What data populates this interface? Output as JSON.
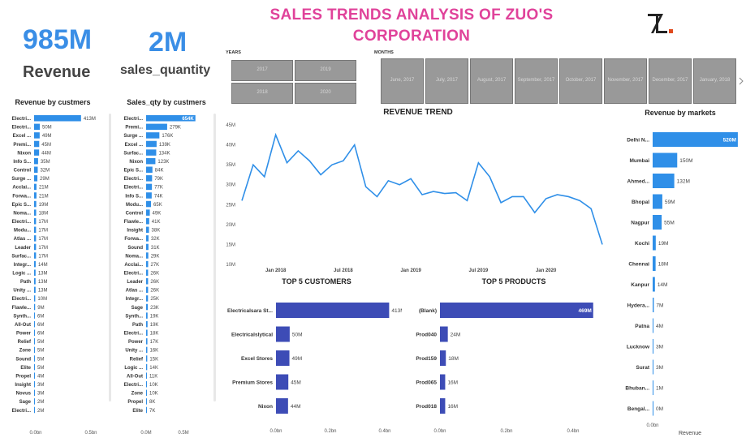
{
  "header": {
    "title_line1": "SALES TRENDS ANALYSIS OF ZUO'S",
    "title_line2": "CORPORATION"
  },
  "kpis": {
    "revenue_value": "985M",
    "revenue_label": "Revenue",
    "qty_value": "2M",
    "qty_label": "sales_quantity"
  },
  "slicers": {
    "years_label": "YEARS",
    "years": [
      "2017",
      "2019",
      "2018",
      "2020"
    ],
    "months_label": "MONTHS",
    "months": [
      "June, 2017",
      "July, 2017",
      "August, 2017",
      "September, 2017",
      "October, 2017",
      "November, 2017",
      "December, 2017",
      "January, 2018"
    ]
  },
  "colors": {
    "title": "#e0429a",
    "kpi": "#3a8ee6",
    "bar_blue": "#2f8fe8",
    "bar_indigo": "#3d4cb6",
    "tile": "#999999"
  },
  "chart_data": [
    {
      "type": "bar",
      "orientation": "horizontal",
      "title": "Revenue by custmers",
      "categories": [
        "Electri...",
        "Electri...",
        "Excel ...",
        "Premi...",
        "Nixon",
        "Info S...",
        "Control",
        "Surge ...",
        "Acclai...",
        "Forwa...",
        "Epic S...",
        "Noma...",
        "Electri...",
        "Modu...",
        "Atlas ...",
        "Leader",
        "Surfac...",
        "Integr...",
        "Logic ...",
        "Path",
        "Unity ...",
        "Electri...",
        "Flawle...",
        "Synth...",
        "All-Out",
        "Power",
        "Relief",
        "Zone",
        "Sound",
        "Elite",
        "Propel",
        "Insight",
        "Novus",
        "Sage",
        "Electri..."
      ],
      "values": [
        413,
        50,
        49,
        45,
        44,
        35,
        32,
        29,
        21,
        21,
        19,
        18,
        17,
        17,
        17,
        17,
        17,
        14,
        13,
        13,
        13,
        10,
        9,
        6,
        6,
        6,
        5,
        5,
        5,
        5,
        4,
        3,
        3,
        2,
        2
      ],
      "value_labels": [
        "413M",
        "50M",
        "49M",
        "45M",
        "44M",
        "35M",
        "32M",
        "29M",
        "21M",
        "21M",
        "19M",
        "18M",
        "17M",
        "17M",
        "17M",
        "17M",
        "17M",
        "14M",
        "13M",
        "13M",
        "13M",
        "10M",
        "9M",
        "6M",
        "6M",
        "6M",
        "5M",
        "5M",
        "5M",
        "5M",
        "4M",
        "3M",
        "3M",
        "2M",
        "2M"
      ],
      "xlim": [
        0,
        500
      ],
      "x_ticks": [
        "0.0bn",
        "0.5bn"
      ]
    },
    {
      "type": "bar",
      "orientation": "horizontal",
      "title": "Sales_qty by custmers",
      "categories": [
        "Electri...",
        "Premi...",
        "Surge ...",
        "Excel ...",
        "Surfac...",
        "Nixon",
        "Epic S...",
        "Electri...",
        "Electri...",
        "Info S...",
        "Modu...",
        "Control",
        "Flawle...",
        "Insight",
        "Forwa...",
        "Sound",
        "Noma...",
        "Acclai...",
        "Electri...",
        "Leader",
        "Atlas ...",
        "Integr...",
        "Sage",
        "Synth...",
        "Path",
        "Electri...",
        "Power",
        "Unity ...",
        "Relief",
        "Logic ...",
        "All-Out",
        "Electri...",
        "Zone",
        "Propel",
        "Elite"
      ],
      "values": [
        654,
        279,
        176,
        139,
        134,
        123,
        84,
        79,
        77,
        74,
        65,
        49,
        41,
        38,
        32,
        31,
        29,
        27,
        26,
        26,
        26,
        25,
        23,
        19,
        19,
        18,
        17,
        16,
        15,
        14,
        11,
        10,
        10,
        8,
        7
      ],
      "value_labels": [
        "654K",
        "279K",
        "176K",
        "139K",
        "134K",
        "123K",
        "84K",
        "79K",
        "77K",
        "74K",
        "65K",
        "49K",
        "41K",
        "38K",
        "32K",
        "31K",
        "29K",
        "27K",
        "26K",
        "26K",
        "26K",
        "25K",
        "23K",
        "19K",
        "19K",
        "18K",
        "17K",
        "16K",
        "15K",
        "14K",
        "11K",
        "10K",
        "10K",
        "8K",
        "7K"
      ],
      "xlim": [
        0,
        700
      ],
      "x_ticks": [
        "0.0M",
        "0.5M"
      ]
    },
    {
      "type": "line",
      "title": "REVENUE TREND",
      "x": [
        "2017-10",
        "2017-11",
        "2017-12",
        "2018-01",
        "2018-02",
        "2018-03",
        "2018-04",
        "2018-05",
        "2018-06",
        "2018-07",
        "2018-08",
        "2018-09",
        "2018-10",
        "2018-11",
        "2018-12",
        "2019-01",
        "2019-02",
        "2019-03",
        "2019-04",
        "2019-05",
        "2019-06",
        "2019-07",
        "2019-08",
        "2019-09",
        "2019-10",
        "2019-11",
        "2019-12",
        "2020-01",
        "2020-02",
        "2020-03",
        "2020-04",
        "2020-05",
        "2020-06"
      ],
      "values": [
        26,
        35,
        32,
        42.5,
        35.5,
        38.5,
        36,
        32.5,
        35,
        36,
        40,
        29.5,
        27,
        31,
        30,
        31.5,
        27.5,
        28.3,
        27.8,
        28,
        26,
        35.5,
        32,
        25.5,
        27,
        27,
        23,
        26.5,
        27.5,
        27,
        26,
        24,
        15
      ],
      "y_ticks": [
        "45M",
        "40M",
        "35M",
        "30M",
        "25M",
        "20M",
        "15M",
        "10M"
      ],
      "ylim": [
        10,
        45
      ],
      "x_ticks": [
        "Jan 2018",
        "Jul 2018",
        "Jan 2019",
        "Jul 2019",
        "Jan 2020"
      ]
    },
    {
      "type": "bar",
      "orientation": "horizontal",
      "title": "Revenue by markets",
      "xlabel": "Revenue",
      "categories": [
        "Delhi N...",
        "Mumbai",
        "Ahmed...",
        "Bhopal",
        "Nagpur",
        "Kochi",
        "Chennai",
        "Kanpur",
        "Hydera...",
        "Patna",
        "Lucknow",
        "Surat",
        "Bhuban...",
        "Bengal..."
      ],
      "values": [
        520,
        150,
        132,
        59,
        55,
        19,
        18,
        14,
        7,
        4,
        3,
        3,
        1,
        0
      ],
      "value_labels": [
        "520M",
        "150M",
        "132M",
        "59M",
        "55M",
        "19M",
        "18M",
        "14M",
        "7M",
        "4M",
        "3M",
        "3M",
        "1M",
        "0M"
      ],
      "xlim": [
        0,
        560
      ],
      "x_ticks": [
        "0.0bn"
      ]
    },
    {
      "type": "bar",
      "orientation": "horizontal",
      "title": "TOP 5 CUSTOMERS",
      "categories": [
        "Electricalsara St...",
        "Electricalslytical",
        "Excel Stores",
        "Premium Stores",
        "Nixon"
      ],
      "values": [
        413,
        50,
        49,
        45,
        44
      ],
      "value_labels": [
        "413M",
        "50M",
        "49M",
        "45M",
        "44M"
      ],
      "xlim": [
        0,
        400
      ],
      "x_ticks": [
        "0.0bn",
        "0.2bn",
        "0.4bn"
      ]
    },
    {
      "type": "bar",
      "orientation": "horizontal",
      "title": "TOP 5 PRODUCTS",
      "categories": [
        "(Blank)",
        "Prod040",
        "Prod159",
        "Prod065",
        "Prod018"
      ],
      "values": [
        469,
        24,
        18,
        16,
        16
      ],
      "value_labels": [
        "469M",
        "24M",
        "18M",
        "16M",
        "16M"
      ],
      "xlim": [
        0,
        410
      ],
      "x_ticks": [
        "0.0bn",
        "0.2bn",
        "0.4bn"
      ]
    }
  ]
}
